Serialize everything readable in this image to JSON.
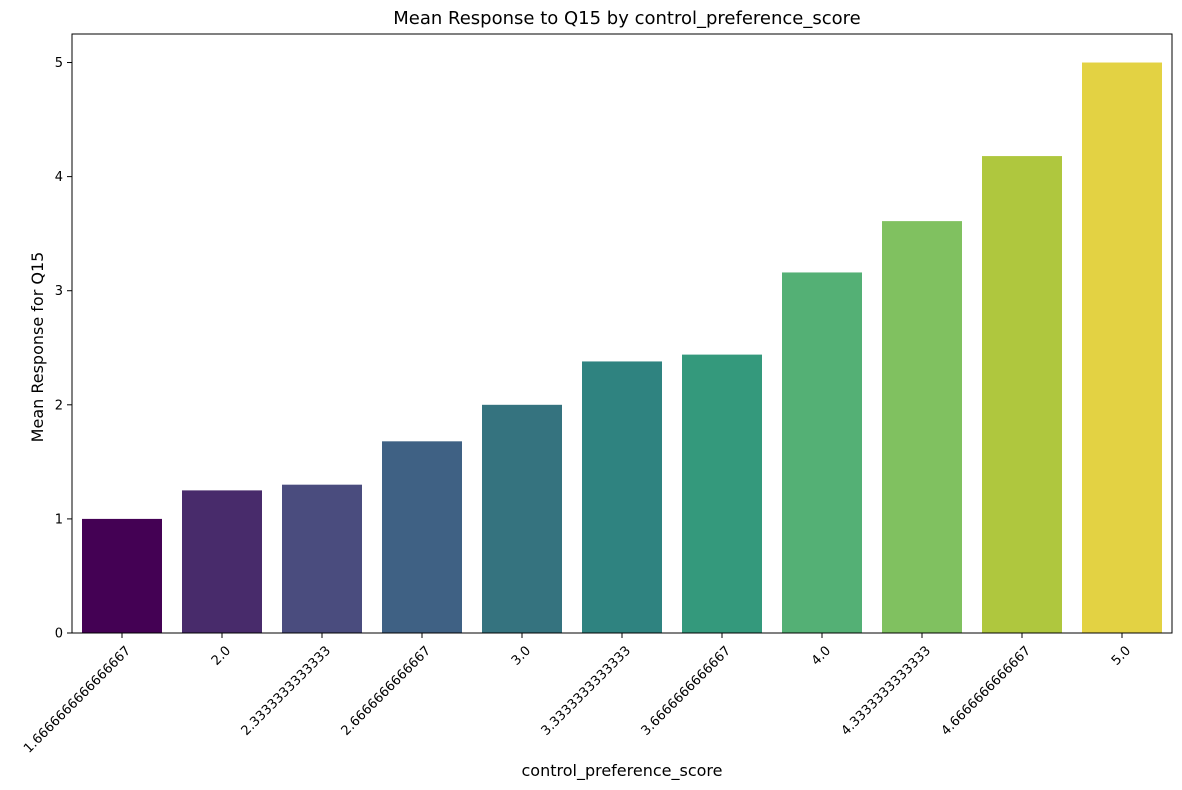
{
  "chart_data": {
    "type": "bar",
    "title": "Mean Response to Q15 by control_preference_score",
    "xlabel": "control_preference_score",
    "ylabel": "Mean Response for Q15",
    "categories": [
      "1.6666666666666667",
      "2.0",
      "2.3333333333333",
      "2.6666666666667",
      "3.0",
      "3.3333333333333",
      "3.6666666666667",
      "4.0",
      "4.3333333333333",
      "4.6666666666667",
      "5.0"
    ],
    "values": [
      1.0,
      1.25,
      1.3,
      1.68,
      2.0,
      2.38,
      2.44,
      3.16,
      3.61,
      4.18,
      5.0
    ],
    "ylim": [
      0,
      5.25
    ],
    "yticks": [
      0,
      1,
      2,
      3,
      4,
      5
    ],
    "grid": false,
    "colors": [
      "#440154",
      "#482b6b",
      "#4a4c7e",
      "#3f6184",
      "#35737f",
      "#2f8380",
      "#34997c",
      "#54b075",
      "#80c160",
      "#afc73e",
      "#e3d243"
    ]
  }
}
